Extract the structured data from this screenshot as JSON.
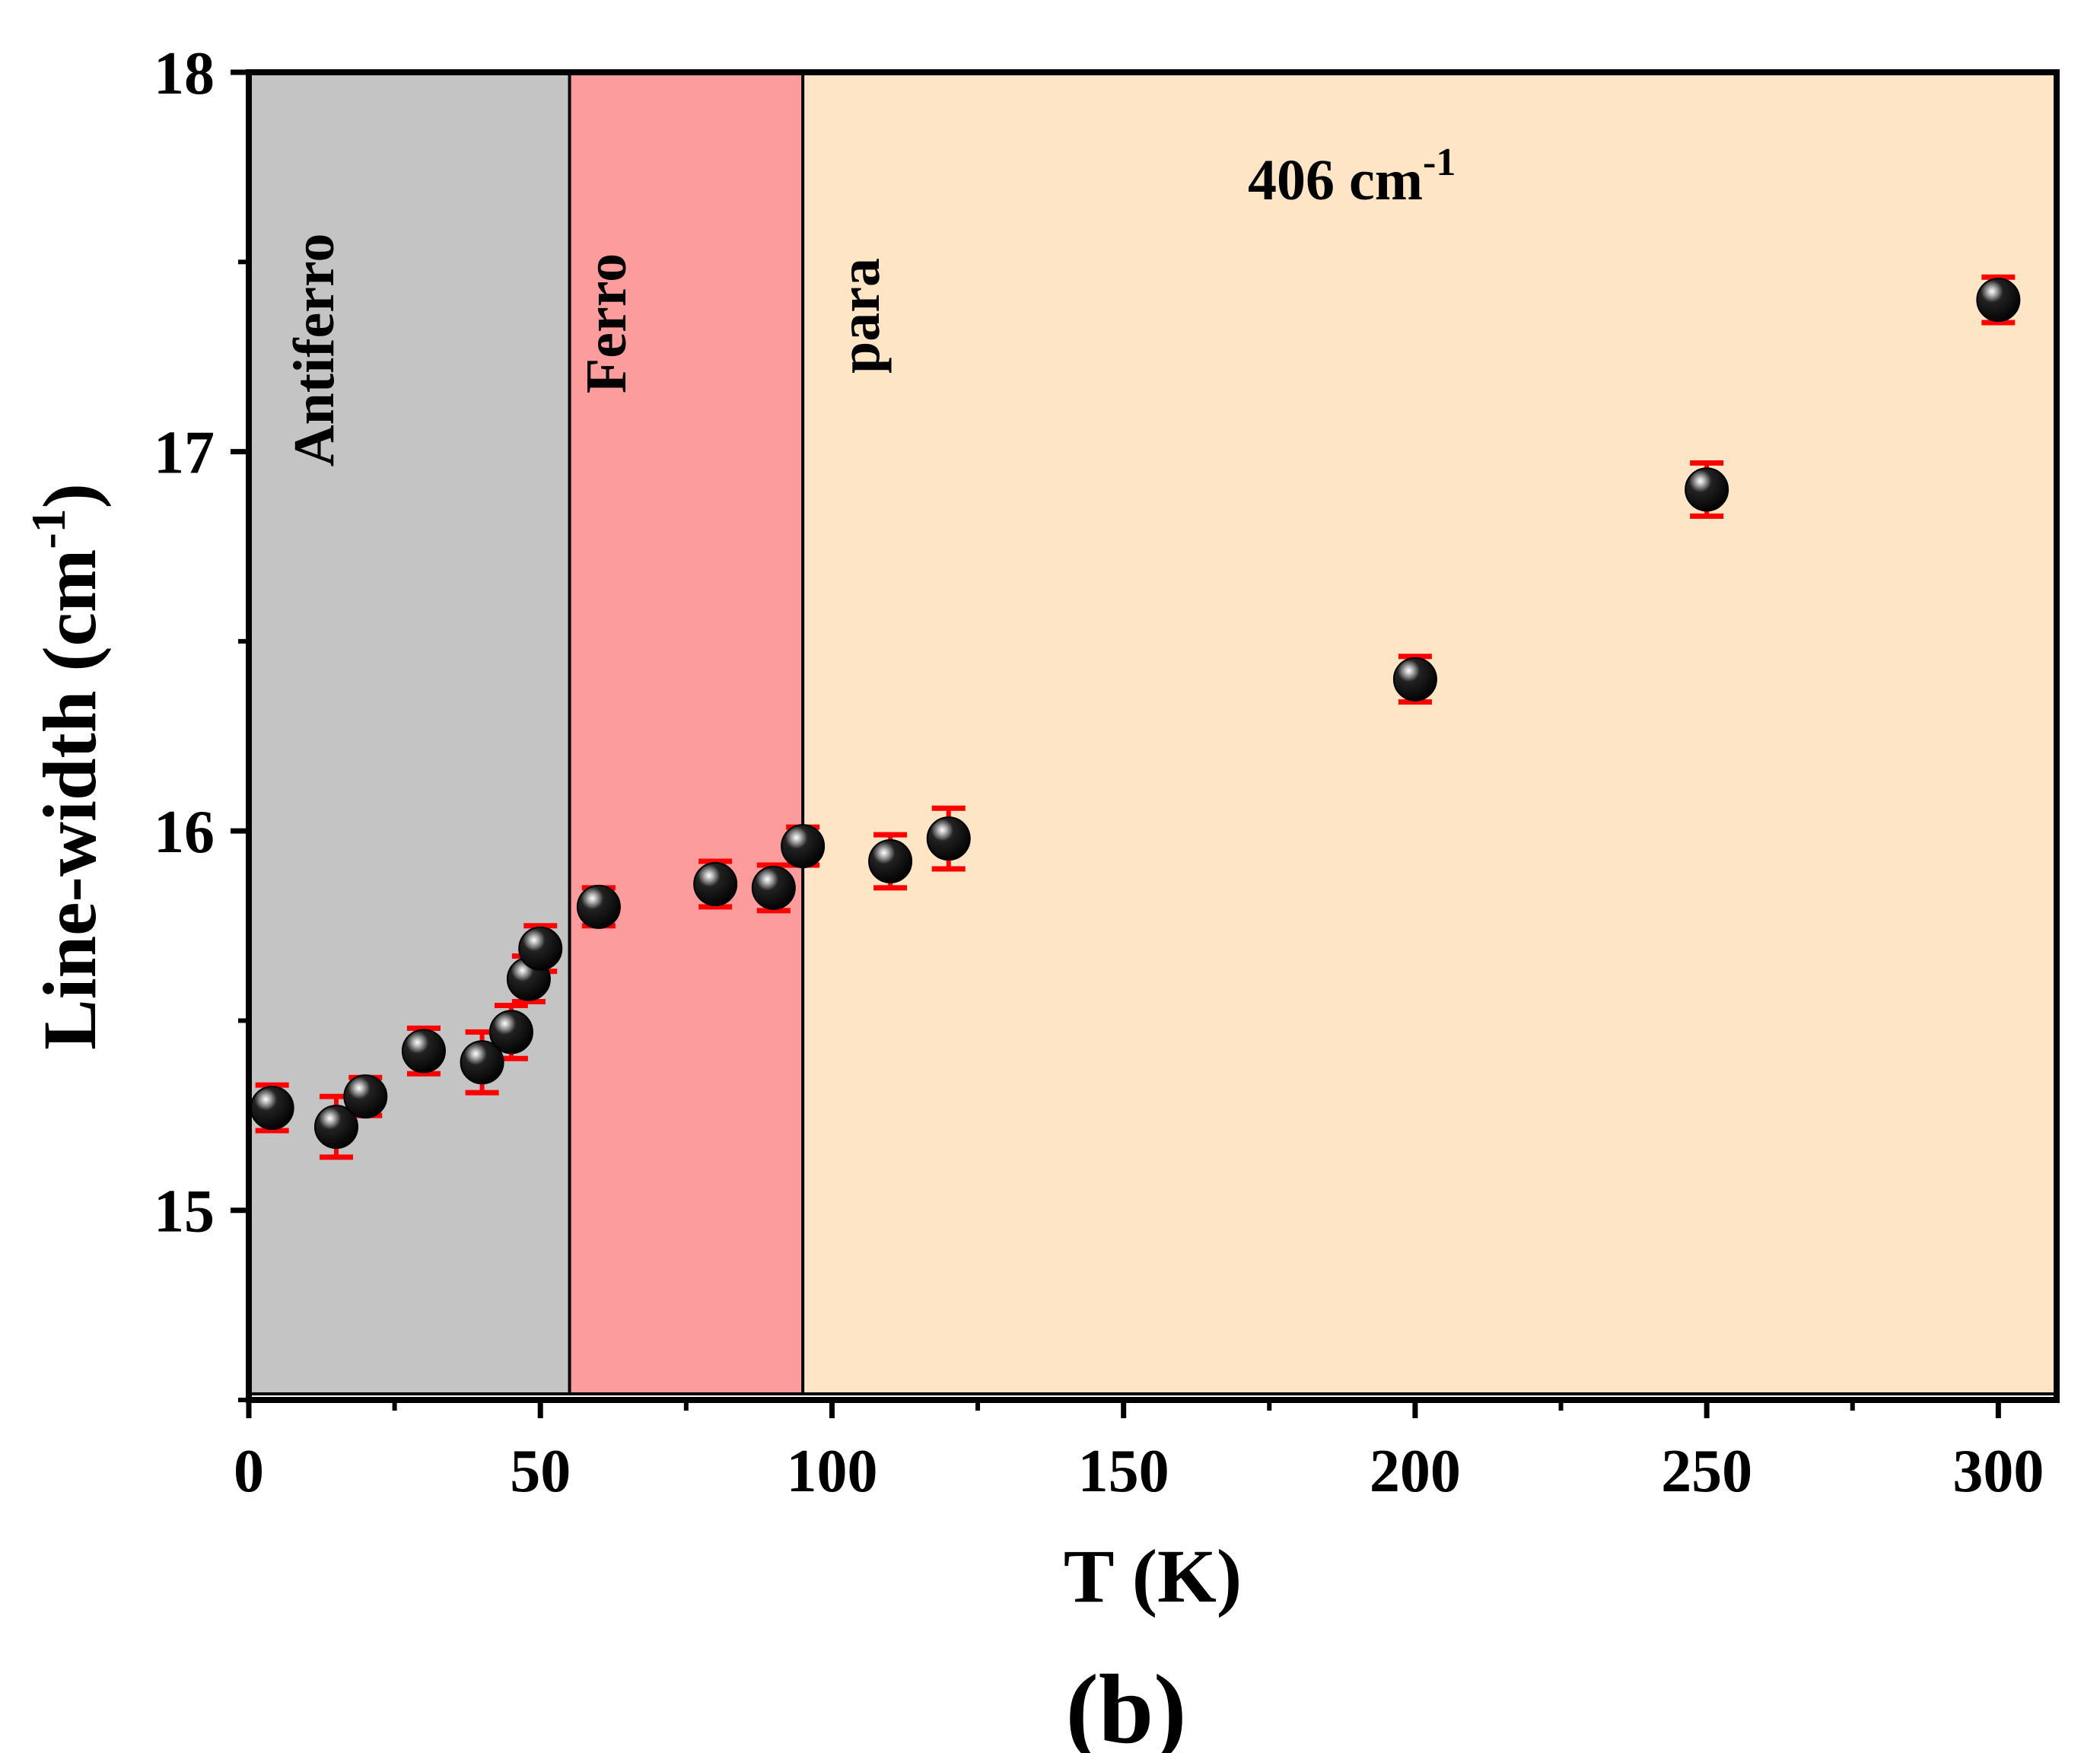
{
  "chart_data": {
    "type": "scatter",
    "title": "",
    "xlabel": "T (K)",
    "ylabel_main": "Line-width (cm",
    "ylabel_sup": "-1",
    "ylabel_close": ")",
    "xlim": [
      0,
      310
    ],
    "ylim": [
      14.5,
      18
    ],
    "x_ticks": [
      0,
      50,
      100,
      150,
      200,
      250,
      300
    ],
    "y_ticks": [
      15,
      16,
      17,
      18
    ],
    "grid": false,
    "annotation": {
      "main": "406 cm",
      "sup": "-1"
    },
    "panel_label": "(b)",
    "regions": [
      {
        "name": "Antiferro",
        "x_start": 0,
        "x_end": 55,
        "color": "#c4c4c4"
      },
      {
        "name": "Ferro",
        "x_start": 55,
        "x_end": 95,
        "color": "#fc9c9c"
      },
      {
        "name": "para",
        "x_start": 95,
        "x_end": 310,
        "color": "#fde5c5"
      }
    ],
    "series": [
      {
        "name": "406 cm-1 mode",
        "marker_color": "#000000",
        "error_color": "#ff0000",
        "points": [
          {
            "x": 4,
            "y": 15.27,
            "err": 0.06
          },
          {
            "x": 15,
            "y": 15.22,
            "err": 0.08
          },
          {
            "x": 20,
            "y": 15.3,
            "err": 0.05
          },
          {
            "x": 30,
            "y": 15.42,
            "err": 0.06
          },
          {
            "x": 40,
            "y": 15.39,
            "err": 0.08
          },
          {
            "x": 45,
            "y": 15.47,
            "err": 0.07
          },
          {
            "x": 48,
            "y": 15.61,
            "err": 0.06
          },
          {
            "x": 50,
            "y": 15.69,
            "err": 0.06
          },
          {
            "x": 60,
            "y": 15.8,
            "err": 0.05
          },
          {
            "x": 80,
            "y": 15.86,
            "err": 0.06
          },
          {
            "x": 90,
            "y": 15.85,
            "err": 0.06
          },
          {
            "x": 95,
            "y": 15.96,
            "err": 0.05
          },
          {
            "x": 110,
            "y": 15.92,
            "err": 0.07
          },
          {
            "x": 120,
            "y": 15.98,
            "err": 0.08
          },
          {
            "x": 200,
            "y": 16.4,
            "err": 0.06
          },
          {
            "x": 250,
            "y": 16.9,
            "err": 0.07
          },
          {
            "x": 300,
            "y": 17.4,
            "err": 0.06
          }
        ]
      }
    ]
  }
}
